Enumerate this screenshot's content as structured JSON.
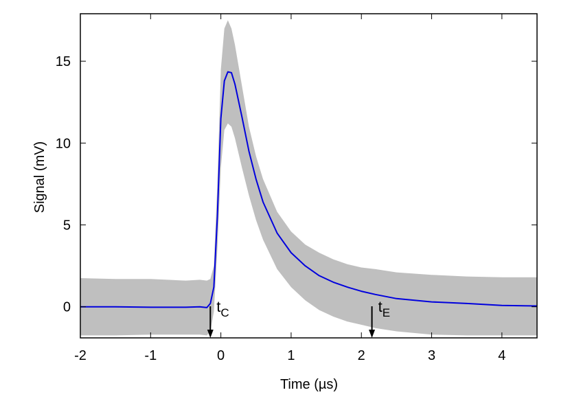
{
  "chart_data": {
    "type": "line",
    "xlabel": "Time (µs)",
    "ylabel": "Signal (mV)",
    "xlim": [
      -2,
      4.5
    ],
    "ylim": [
      -1.9,
      17.9
    ],
    "xticks": [
      -2,
      -1,
      0,
      1,
      2,
      3,
      4
    ],
    "yticks": [
      0,
      5,
      10,
      15
    ],
    "grid": false,
    "colors": {
      "mean_line": "#0000dd",
      "band": "#bfbfbf",
      "axes": "#000000"
    },
    "series": [
      {
        "x": [
          -2,
          -1.5,
          -1,
          -0.5,
          -0.3,
          -0.2,
          -0.15,
          -0.1,
          -0.05,
          0,
          0.05,
          0.1,
          0.15,
          0.2,
          0.3,
          0.4,
          0.5,
          0.6,
          0.8,
          1.0,
          1.2,
          1.4,
          1.6,
          1.8,
          2.0,
          2.2,
          2.5,
          3.0,
          3.5,
          4.0,
          4.5
        ],
        "y": [
          0.0,
          0.0,
          -0.03,
          -0.03,
          0.0,
          -0.05,
          0.2,
          1.2,
          5.5,
          11.5,
          13.8,
          14.35,
          14.3,
          13.6,
          11.6,
          9.5,
          7.8,
          6.4,
          4.5,
          3.3,
          2.5,
          1.9,
          1.5,
          1.2,
          0.95,
          0.75,
          0.5,
          0.3,
          0.2,
          0.08,
          0.05
        ]
      },
      {
        "x": [
          -2,
          -1.5,
          -1,
          -0.5,
          -0.3,
          -0.2,
          -0.15,
          -0.1,
          -0.05,
          0,
          0.05,
          0.1,
          0.15,
          0.2,
          0.3,
          0.4,
          0.5,
          0.6,
          0.8,
          1.0,
          1.2,
          1.4,
          1.6,
          1.8,
          2.0,
          2.2,
          2.5,
          3.0,
          3.5,
          4.0,
          4.5
        ],
        "y": [
          1.75,
          1.7,
          1.7,
          1.6,
          1.65,
          1.6,
          1.7,
          2.5,
          7.5,
          14.5,
          17.0,
          17.5,
          17.0,
          16.0,
          13.5,
          11.0,
          9.2,
          7.8,
          5.8,
          4.6,
          3.8,
          3.3,
          2.9,
          2.6,
          2.4,
          2.3,
          2.1,
          1.95,
          1.85,
          1.8,
          1.8
        ]
      },
      {
        "x": [
          -2,
          -1.5,
          -1,
          -0.5,
          -0.3,
          -0.2,
          -0.15,
          -0.1,
          -0.05,
          0,
          0.05,
          0.1,
          0.15,
          0.2,
          0.3,
          0.4,
          0.5,
          0.6,
          0.8,
          1.0,
          1.2,
          1.4,
          1.6,
          1.8,
          2.0,
          2.2,
          2.5,
          3.0,
          3.5,
          4.0,
          4.5
        ],
        "y": [
          -1.75,
          -1.75,
          -1.7,
          -1.7,
          -1.7,
          -1.75,
          -1.5,
          -0.3,
          3.5,
          8.5,
          10.8,
          11.2,
          11.0,
          10.3,
          8.5,
          6.8,
          5.3,
          4.1,
          2.3,
          1.2,
          0.4,
          -0.2,
          -0.6,
          -0.9,
          -1.1,
          -1.3,
          -1.5,
          -1.7,
          -1.75,
          -1.75,
          -1.75
        ]
      }
    ],
    "annotations": [
      {
        "base": "t",
        "sub": "C",
        "x": -0.15
      },
      {
        "base": "t",
        "sub": "E",
        "x": 2.15
      }
    ]
  }
}
